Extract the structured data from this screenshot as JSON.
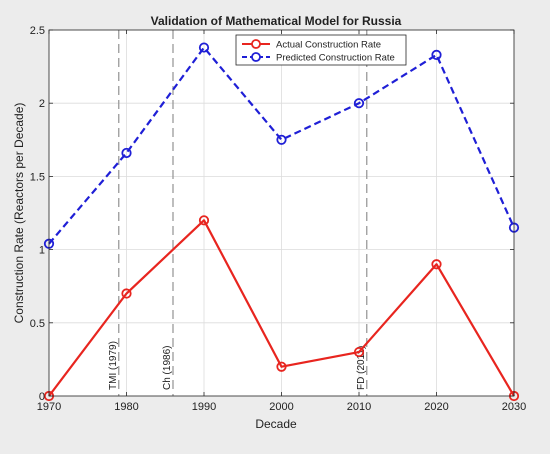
{
  "chart_data": {
    "type": "line",
    "title": "Validation of Mathematical Model for Russia",
    "xlabel": "Decade",
    "ylabel": "Construction Rate (Reactors per Decade)",
    "x": [
      1970,
      1980,
      1990,
      2000,
      2010,
      2020,
      2030
    ],
    "xlim": [
      1970,
      2030
    ],
    "ylim": [
      0,
      2.5
    ],
    "xticks": [
      "1970",
      "1980",
      "1990",
      "2000",
      "2010",
      "2020",
      "2030"
    ],
    "yticks": [
      "0",
      "0.5",
      "1",
      "1.5",
      "2",
      "2.5"
    ],
    "grid": true,
    "legend_position": "top-center",
    "series": [
      {
        "name": "Actual Construction Rate",
        "values": [
          0,
          0.7,
          1.2,
          0.2,
          0.3,
          0.9,
          0
        ],
        "color": "#e8251f",
        "line_style": "solid",
        "marker": "circle"
      },
      {
        "name": "Predicted Construction Rate",
        "values": [
          1.04,
          1.66,
          2.38,
          1.75,
          2.0,
          2.33,
          1.15
        ],
        "color": "#1f1fd6",
        "line_style": "dashed",
        "marker": "circle"
      }
    ],
    "annotations": [
      {
        "x": 1979,
        "label": "TMI (1979)"
      },
      {
        "x": 1986,
        "label": "Ch (1986)"
      },
      {
        "x": 2011,
        "label": "FD (2011)"
      }
    ],
    "event_line_color": "#9a9a9a"
  }
}
